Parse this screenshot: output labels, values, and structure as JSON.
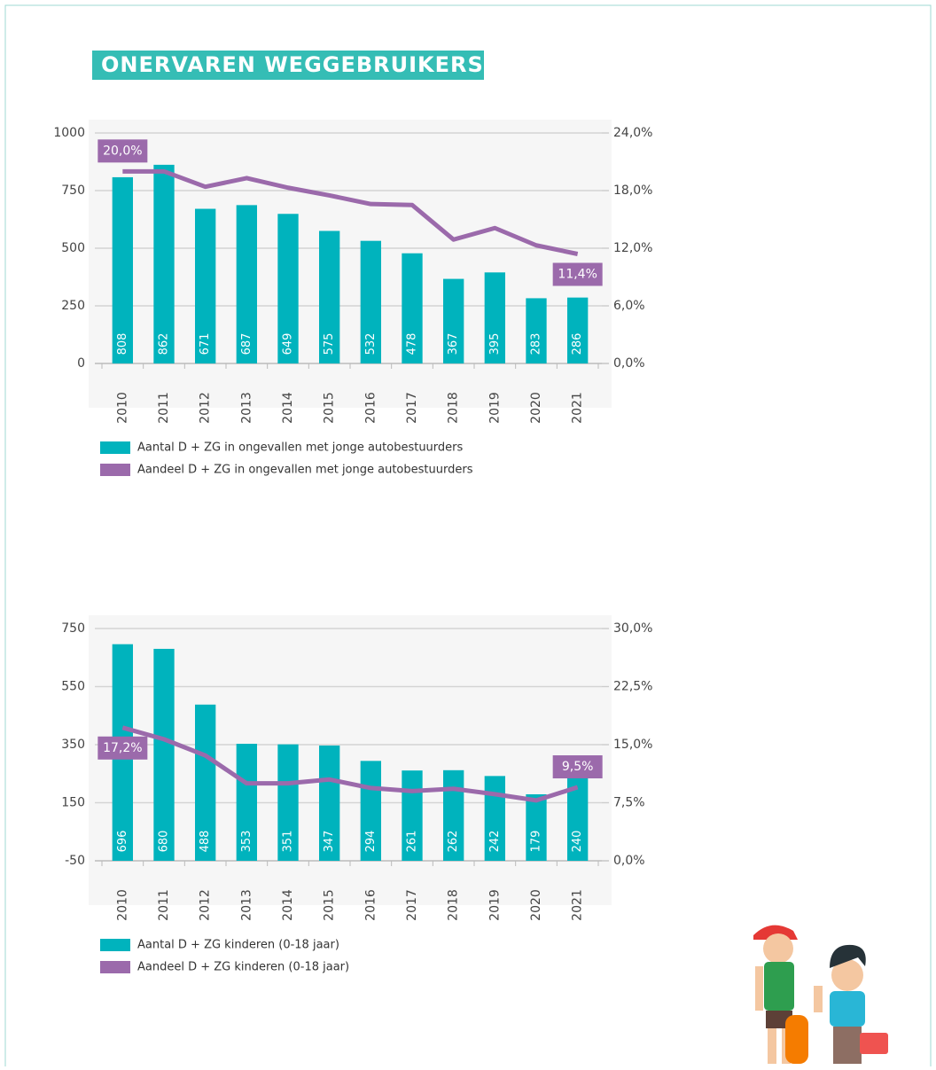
{
  "header": {
    "title": "ONERVAREN WEGGEBRUIKERS"
  },
  "chart_data": [
    {
      "type": "combo",
      "categories": [
        "2010",
        "2011",
        "2012",
        "2013",
        "2014",
        "2015",
        "2016",
        "2017",
        "2018",
        "2019",
        "2020",
        "2021"
      ],
      "series": [
        {
          "name": "Aantal D + ZG in ongevallen met jonge autobestuurders",
          "type": "bar",
          "color": "#00b3bd",
          "values": [
            808,
            862,
            671,
            687,
            649,
            575,
            532,
            478,
            367,
            395,
            283,
            286
          ]
        },
        {
          "name": "Aandeel D + ZG in ongevallen met jonge autobestuurders",
          "type": "line",
          "axis": "y2",
          "color": "#9b6aab",
          "values": [
            20.0,
            20.0,
            18.4,
            19.3,
            18.3,
            17.5,
            16.6,
            16.5,
            12.9,
            14.1,
            12.3,
            11.4
          ],
          "value_labels": [
            "20,0%",
            null,
            null,
            null,
            null,
            null,
            null,
            null,
            null,
            null,
            null,
            "11,4%"
          ]
        }
      ],
      "ylim": [
        0,
        1000
      ],
      "yticks": [
        0,
        250,
        500,
        750,
        1000
      ],
      "y2lim": [
        0,
        24
      ],
      "y2ticks": [
        {
          "value": 0,
          "label": "0,0%"
        },
        {
          "value": 6,
          "label": "6,0%"
        },
        {
          "value": 12,
          "label": "12,0%"
        },
        {
          "value": 18,
          "label": "18,0%"
        },
        {
          "value": 24,
          "label": "24,0%"
        }
      ],
      "grid": true
    },
    {
      "type": "combo",
      "categories": [
        "2010",
        "2011",
        "2012",
        "2013",
        "2014",
        "2015",
        "2016",
        "2017",
        "2018",
        "2019",
        "2020",
        "2021"
      ],
      "series": [
        {
          "name": "Aantal D + ZG kinderen (0-18 jaar)",
          "type": "bar",
          "color": "#00b3bd",
          "values": [
            696,
            680,
            488,
            353,
            351,
            347,
            294,
            261,
            262,
            242,
            179,
            240
          ]
        },
        {
          "name": "Aandeel D + ZG kinderen (0-18 jaar)",
          "type": "line",
          "axis": "y2",
          "color": "#9b6aab",
          "values": [
            17.2,
            15.7,
            13.6,
            10.0,
            10.0,
            10.5,
            9.4,
            9.0,
            9.3,
            8.6,
            7.8,
            9.5
          ],
          "value_labels": [
            "17,2%",
            null,
            null,
            null,
            null,
            null,
            null,
            null,
            null,
            null,
            null,
            "9,5%"
          ]
        }
      ],
      "ylim": [
        -50,
        750
      ],
      "yticks": [
        -50,
        150,
        350,
        550,
        750
      ],
      "y2lim": [
        0,
        30
      ],
      "y2ticks": [
        {
          "value": 0,
          "label": "0,0%"
        },
        {
          "value": 7.5,
          "label": "7,5%"
        },
        {
          "value": 15,
          "label": "15,0%"
        },
        {
          "value": 22.5,
          "label": "22,5%"
        },
        {
          "value": 30,
          "label": "30,0%"
        }
      ],
      "grid": true
    }
  ]
}
